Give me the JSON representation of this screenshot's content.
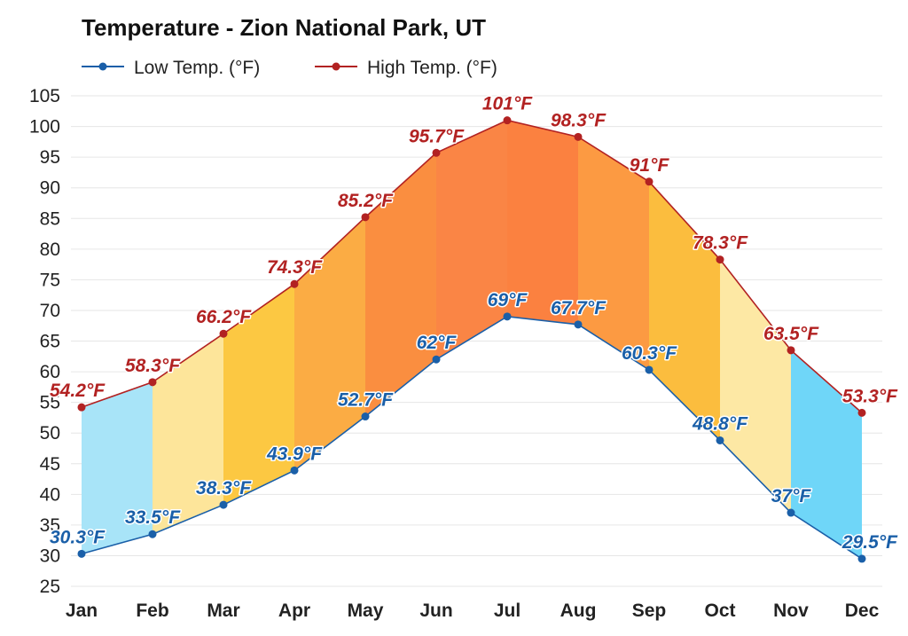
{
  "chart_data": {
    "type": "area",
    "title": "Temperature - Zion National Park, UT",
    "categories": [
      "Jan",
      "Feb",
      "Mar",
      "Apr",
      "May",
      "Jun",
      "Jul",
      "Aug",
      "Sep",
      "Oct",
      "Nov",
      "Dec"
    ],
    "ylim": [
      25,
      105
    ],
    "yticks": [
      25,
      30,
      35,
      40,
      45,
      50,
      55,
      60,
      65,
      70,
      75,
      80,
      85,
      90,
      95,
      100,
      105
    ],
    "grid": true,
    "legend_position": "top-left",
    "series": [
      {
        "name": "Low Temp. (°F)",
        "color": "#1a5fa8",
        "values": [
          30.3,
          33.5,
          38.3,
          43.9,
          52.7,
          62,
          69,
          67.7,
          60.3,
          48.8,
          37,
          29.5
        ],
        "labels": [
          "30.3°F",
          "33.5°F",
          "38.3°F",
          "43.9°F",
          "52.7°F",
          "62°F",
          "69°F",
          "67.7°F",
          "60.3°F",
          "48.8°F",
          "37°F",
          "29.5°F"
        ]
      },
      {
        "name": "High Temp. (°F)",
        "color": "#b22222",
        "values": [
          54.2,
          58.3,
          66.2,
          74.3,
          85.2,
          95.7,
          101,
          98.3,
          91,
          78.3,
          63.5,
          53.3
        ],
        "labels": [
          "54.2°F",
          "58.3°F",
          "66.2°F",
          "74.3°F",
          "85.2°F",
          "95.7°F",
          "101°F",
          "98.3°F",
          "91°F",
          "78.3°F",
          "63.5°F",
          "53.3°F"
        ]
      }
    ],
    "segment_fill_colors": [
      "#a8e4f8",
      "#fde59a",
      "#fcc842",
      "#fbac44",
      "#fa8e40",
      "#fa8545",
      "#fb8140",
      "#fc9a42",
      "#fbbd3e",
      "#fde8a4",
      "#6fd6f8"
    ]
  }
}
